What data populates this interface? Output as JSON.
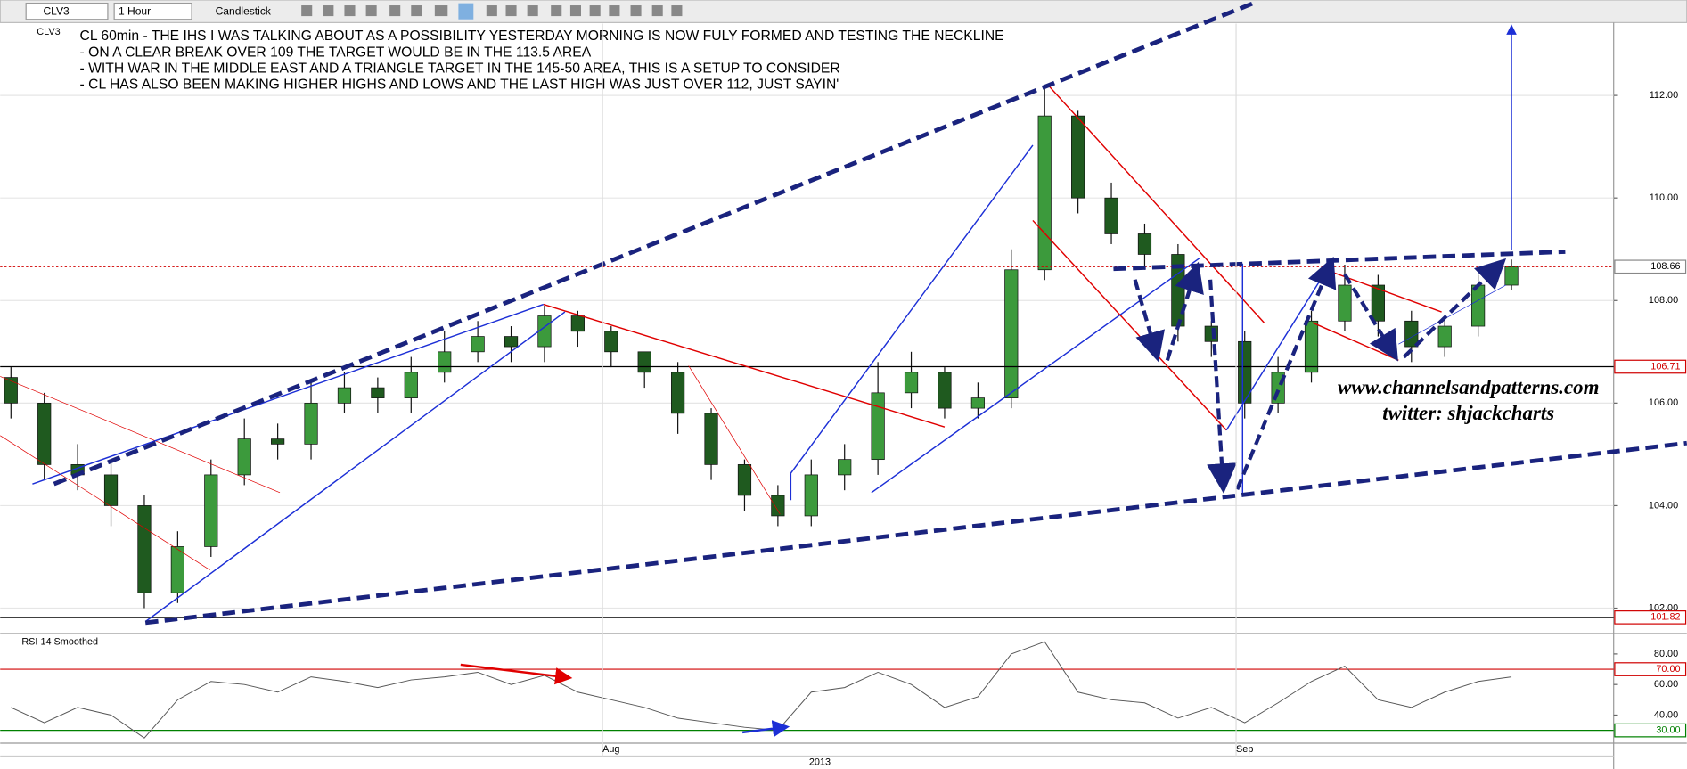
{
  "toolbar": {
    "symbol": "CLV3",
    "interval": "1 Hour",
    "style": "Candlestick"
  },
  "chart_data": [
    {
      "type": "candlestick",
      "legend_label": "CLV3",
      "annotations": [
        "CL 60min - THE IHS I WAS TALKING ABOUT AS A POSSIBILITY YESTERDAY MORNING IS NOW FULY FORMED AND TESTING THE NECKLINE",
        "- ON A CLEAR BREAK OVER 109 THE TARGET WOULD BE IN THE 113.5 AREA",
        "- WITH WAR IN THE MIDDLE EAST AND A TRIANGLE TARGET IN THE 145-50 AREA, THIS IS A SETUP TO CONSIDER",
        "- CL HAS ALSO BEEN MAKING HIGHER HIGHS AND LOWS AND THE LAST HIGH WAS JUST OVER 112, JUST SAYIN'"
      ],
      "watermark": [
        "www.channelsandpatterns.com",
        "twitter: shjackcharts"
      ],
      "open": [
        106.5,
        106.0,
        104.8,
        104.6,
        104.0,
        102.3,
        103.2,
        104.6,
        105.3,
        105.2,
        106.0,
        106.3,
        106.1,
        106.6,
        107.0,
        107.3,
        107.1,
        107.7,
        107.4,
        107.0,
        106.6,
        105.8,
        104.8,
        104.2,
        103.8,
        104.6,
        104.9,
        106.2,
        106.6,
        105.9,
        106.1,
        108.6,
        111.6,
        110.0,
        109.3,
        108.9,
        107.5,
        107.2,
        106.0,
        106.6,
        107.6,
        108.3,
        107.6,
        107.1,
        107.5,
        108.3
      ],
      "high": [
        106.7,
        106.2,
        105.2,
        104.9,
        104.2,
        103.5,
        104.9,
        105.7,
        105.6,
        106.4,
        106.6,
        106.5,
        106.9,
        107.4,
        107.6,
        107.5,
        107.9,
        107.8,
        107.5,
        107.0,
        106.8,
        105.9,
        104.9,
        104.4,
        104.9,
        105.2,
        106.8,
        107.0,
        106.7,
        106.4,
        109.0,
        112.2,
        111.7,
        110.3,
        109.5,
        109.1,
        107.6,
        107.4,
        106.9,
        107.8,
        108.7,
        108.5,
        107.8,
        107.7,
        108.5,
        108.8
      ],
      "low": [
        105.7,
        104.5,
        104.3,
        103.6,
        102.0,
        102.1,
        103.0,
        104.4,
        104.9,
        104.9,
        105.8,
        105.8,
        105.8,
        106.4,
        106.8,
        106.8,
        106.8,
        107.1,
        106.7,
        106.3,
        105.4,
        104.5,
        103.9,
        103.6,
        103.6,
        104.3,
        104.6,
        105.9,
        105.7,
        105.7,
        105.9,
        108.4,
        109.7,
        109.1,
        108.6,
        107.2,
        106.9,
        105.7,
        105.8,
        106.4,
        107.4,
        107.3,
        106.8,
        106.9,
        107.3,
        108.2
      ],
      "close": [
        106.0,
        104.8,
        104.6,
        104.0,
        102.3,
        103.2,
        104.6,
        105.3,
        105.2,
        106.0,
        106.3,
        106.1,
        106.6,
        107.0,
        107.3,
        107.1,
        107.7,
        107.4,
        107.0,
        106.6,
        105.8,
        104.8,
        104.2,
        103.8,
        104.6,
        104.9,
        106.2,
        106.6,
        105.9,
        106.1,
        108.6,
        111.6,
        110.0,
        109.3,
        108.9,
        107.5,
        107.2,
        106.0,
        106.6,
        107.6,
        108.3,
        107.6,
        107.1,
        107.5,
        108.3,
        108.66
      ],
      "up_color": "#3c9a3c",
      "down_color": "#1f5a1f",
      "ylim": [
        101.8,
        113.4
      ],
      "yticks": [
        {
          "value": 102,
          "label": "102.00"
        },
        {
          "value": 104,
          "label": "104.00"
        },
        {
          "value": 106,
          "label": "106.00"
        },
        {
          "value": 108,
          "label": "108.00"
        },
        {
          "value": 110,
          "label": "110.00"
        },
        {
          "value": 112,
          "label": "112.00"
        }
      ],
      "grid": true,
      "price_lines": [
        {
          "value": 108.66,
          "color": "#d00000",
          "dash": true
        },
        {
          "value": 106.71,
          "color": "#000000",
          "dash": false
        },
        {
          "value": 101.82,
          "color": "#000000",
          "dash": false
        }
      ]
    },
    {
      "type": "line",
      "title": "RSI 14 Smoothed",
      "color": "#555555",
      "categories": [
        null,
        null,
        null,
        null,
        null,
        null,
        null,
        null,
        null,
        null,
        null,
        null,
        null,
        null,
        null,
        null,
        null,
        null,
        "Aug",
        null,
        null,
        null,
        null,
        null,
        null,
        null,
        null,
        null,
        null,
        null,
        null,
        null,
        null,
        null,
        null,
        null,
        null,
        "Sep",
        null,
        null,
        null,
        null,
        null,
        null,
        null,
        null
      ],
      "period_label": "2013",
      "values": [
        45,
        35,
        45,
        40,
        25,
        50,
        62,
        60,
        55,
        65,
        62,
        58,
        63,
        65,
        68,
        60,
        66,
        55,
        50,
        45,
        38,
        35,
        32,
        30,
        55,
        58,
        68,
        60,
        45,
        52,
        80,
        88,
        55,
        50,
        48,
        38,
        45,
        35,
        48,
        62,
        72,
        50,
        45,
        55,
        62,
        65
      ],
      "ylim": [
        22.3,
        92.7
      ],
      "yticks": [
        {
          "value": 40,
          "label": "40.00"
        },
        {
          "value": 60,
          "label": "60.00"
        },
        {
          "value": 80,
          "label": "80.00"
        }
      ],
      "levels": [
        {
          "value": 70,
          "label": "70.00",
          "color": "#d00000"
        },
        {
          "value": 30,
          "label": "30.00",
          "color": "#008000"
        }
      ]
    }
  ]
}
